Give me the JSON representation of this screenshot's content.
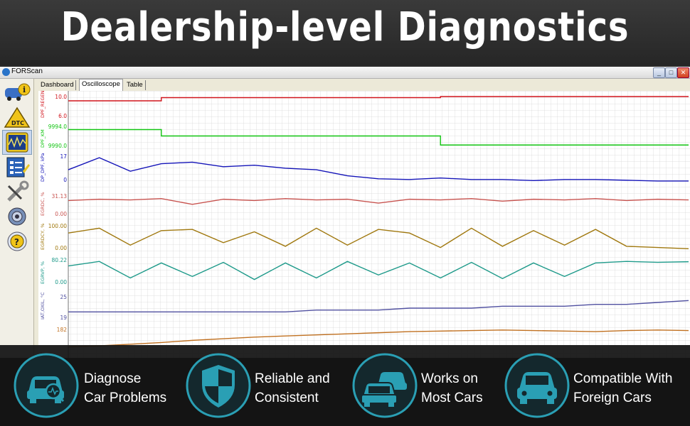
{
  "banner": {
    "title": "Dealership-level Diagnostics"
  },
  "window": {
    "title": "FORScan",
    "controls": [
      "_",
      "□",
      "✕"
    ]
  },
  "sidebar": {
    "items": [
      {
        "name": "vehicle-info-icon",
        "label": ""
      },
      {
        "name": "dtc-icon",
        "label": "DTC"
      },
      {
        "name": "oscilloscope-icon",
        "label": ""
      },
      {
        "name": "tests-icon",
        "label": ""
      },
      {
        "name": "service-wrench-icon",
        "label": ""
      },
      {
        "name": "settings-gear-icon",
        "label": ""
      },
      {
        "name": "help-icon",
        "label": "?"
      }
    ]
  },
  "tabs": [
    {
      "label": "Dashboard",
      "active": false
    },
    {
      "label": "Oscilloscope",
      "active": true
    },
    {
      "label": "Table",
      "active": false
    }
  ],
  "chart_data": {
    "type": "line",
    "x": [
      0,
      5,
      10,
      15,
      20,
      25,
      30,
      35,
      40,
      45,
      50,
      55,
      60,
      65,
      70,
      75,
      80,
      85,
      90,
      95,
      100
    ],
    "series": [
      {
        "name": "DPF_REGEN_KM",
        "color": "#d0141c",
        "ytop": "10.0",
        "ybot": "6.0",
        "ymin": 6,
        "ymax": 10,
        "values": [
          9.2,
          9.2,
          9.2,
          9.8,
          9.8,
          9.8,
          9.8,
          9.8,
          9.8,
          9.8,
          9.8,
          9.8,
          10.0,
          10.0,
          10.0,
          10.0,
          10.0,
          10.0,
          10.0,
          10.0,
          10.0
        ]
      },
      {
        "name": "DPF_KM",
        "color": "#11c411",
        "ytop": "9994.0",
        "ybot": "9990.0",
        "ymin": 9990,
        "ymax": 9994,
        "values": [
          9993.4,
          9993.4,
          9993.4,
          9992.2,
          9992.2,
          9992.2,
          9992.2,
          9992.2,
          9992.2,
          9992.2,
          9992.2,
          9992.2,
          9990.5,
          9990.5,
          9990.5,
          9990.5,
          9990.5,
          9990.5,
          9990.5,
          9990.5,
          9990.5
        ]
      },
      {
        "name": "DP_DPF, kPa",
        "color": "#1414b8",
        "ytop": "17",
        "ybot": "0",
        "ymin": 0,
        "ymax": 17,
        "values": [
          8,
          16,
          7,
          12,
          13,
          10,
          11,
          9,
          8,
          4,
          2,
          1.5,
          2.5,
          1.5,
          1.5,
          0.8,
          1.5,
          1.5,
          1,
          0.5,
          0.5
        ]
      },
      {
        "name": "EGRDC, %",
        "color": "#c85450",
        "ytop": "31.13",
        "ybot": "0.00",
        "ymin": 0,
        "ymax": 31.13,
        "values": [
          24,
          26,
          25,
          27,
          18,
          26,
          24,
          27,
          25,
          26,
          20,
          26,
          25,
          27,
          23,
          26,
          25,
          27,
          24,
          26,
          25
        ]
      },
      {
        "name": "EGRDCY, %",
        "color": "#a0780e",
        "ytop": "100.00",
        "ybot": "0.00",
        "ymin": 0,
        "ymax": 100,
        "values": [
          70,
          90,
          20,
          80,
          85,
          30,
          75,
          15,
          90,
          20,
          85,
          70,
          10,
          90,
          15,
          80,
          20,
          85,
          15,
          10,
          5
        ]
      },
      {
        "name": "EGRVP, %",
        "color": "#1e9a8a",
        "ytop": "80.22",
        "ybot": "0.00",
        "ymin": 0,
        "ymax": 80.22,
        "values": [
          60,
          75,
          20,
          70,
          25,
          72,
          15,
          70,
          20,
          75,
          30,
          70,
          20,
          72,
          18,
          70,
          25,
          70,
          75,
          72,
          74
        ]
      },
      {
        "name": "IAT,OXIL, °C",
        "color": "#5050a0",
        "ytop": "25",
        "ybot": "19",
        "ymin": 19,
        "ymax": 25,
        "values": [
          21,
          21,
          21,
          21,
          21,
          21,
          21,
          21,
          21.5,
          21.5,
          21.5,
          22,
          22,
          22,
          22.5,
          22.5,
          22.5,
          23,
          23,
          23.5,
          24
        ]
      },
      {
        "name": "°C",
        "color": "#c07020",
        "ytop": "182",
        "ybot": "",
        "ymin": 130,
        "ymax": 182,
        "values": [
          150,
          152,
          155,
          158,
          162,
          165,
          168,
          170,
          172,
          174,
          176,
          178,
          179,
          180,
          181,
          180,
          179,
          178,
          180,
          181,
          180
        ]
      }
    ]
  },
  "features": [
    {
      "icon": "car-diagnose-icon",
      "lines": [
        "Diagnose",
        "Car Problems"
      ]
    },
    {
      "icon": "shield-icon",
      "lines": [
        "Reliable and",
        "Consistent"
      ]
    },
    {
      "icon": "two-cars-icon",
      "lines": [
        "Works on",
        "Most Cars"
      ]
    },
    {
      "icon": "car-front-icon",
      "lines": [
        "Compatible With",
        " Foreign Cars"
      ]
    }
  ],
  "colors": {
    "accent": "#2a9fb4",
    "overlay_bg": "#121212",
    "banner_bg": "#2f2f2f"
  }
}
